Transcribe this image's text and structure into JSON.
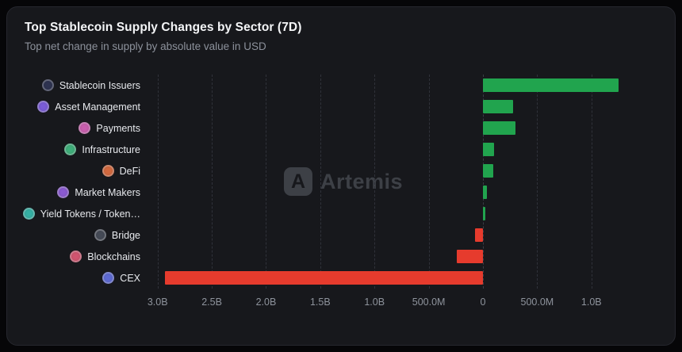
{
  "header": {
    "title": "Top Stablecoin Supply Changes by Sector (7D)",
    "subtitle": "Top net change in supply by absolute value in USD"
  },
  "watermark": {
    "label": "Artemis",
    "logo_glyph": "A"
  },
  "chart_data": {
    "type": "bar",
    "orientation": "horizontal",
    "title": "Top Stablecoin Supply Changes by Sector (7D)",
    "subtitle": "Top net change in supply by absolute value in USD",
    "unit": "USD",
    "grid": "dashed-vertical",
    "xlim": [
      -3100000000,
      1550000000
    ],
    "x_ticks": [
      {
        "value": -3000000000,
        "label": "3.0B"
      },
      {
        "value": -2500000000,
        "label": "2.5B"
      },
      {
        "value": -2000000000,
        "label": "2.0B"
      },
      {
        "value": -1500000000,
        "label": "1.5B"
      },
      {
        "value": -1000000000,
        "label": "1.0B"
      },
      {
        "value": -500000000,
        "label": "500.0M"
      },
      {
        "value": 0,
        "label": "0"
      },
      {
        "value": 500000000,
        "label": "500.0M"
      },
      {
        "value": 1000000000,
        "label": "1.0B"
      }
    ],
    "colors": {
      "positive": "#21a44e",
      "negative": "#e63b2d"
    },
    "rows": [
      {
        "slug": "stablecoin-issuers",
        "label": "Stablecoin Issuers",
        "value": 1250000000,
        "icon_color": "#2e3350"
      },
      {
        "slug": "asset-management",
        "label": "Asset Management",
        "value": 280000000,
        "icon_color": "#7a5cd6"
      },
      {
        "slug": "payments",
        "label": "Payments",
        "value": 300000000,
        "icon_color": "#c95fae"
      },
      {
        "slug": "infrastructure",
        "label": "Infrastructure",
        "value": 105000000,
        "icon_color": "#3fae7a"
      },
      {
        "slug": "defi",
        "label": "DeFi",
        "value": 95000000,
        "icon_color": "#d2693f"
      },
      {
        "slug": "market-makers",
        "label": "Market Makers",
        "value": 40000000,
        "icon_color": "#8a5ad0"
      },
      {
        "slug": "yield-tokens",
        "label": "Yield Tokens / Token…",
        "value": 25000000,
        "icon_color": "#35b0a4"
      },
      {
        "slug": "bridge",
        "label": "Bridge",
        "value": -70000000,
        "icon_color": "#454a56"
      },
      {
        "slug": "blockchains",
        "label": "Blockchains",
        "value": -240000000,
        "icon_color": "#d05570"
      },
      {
        "slug": "cex",
        "label": "CEX",
        "value": -2930000000,
        "icon_color": "#5e6ad2"
      }
    ]
  }
}
